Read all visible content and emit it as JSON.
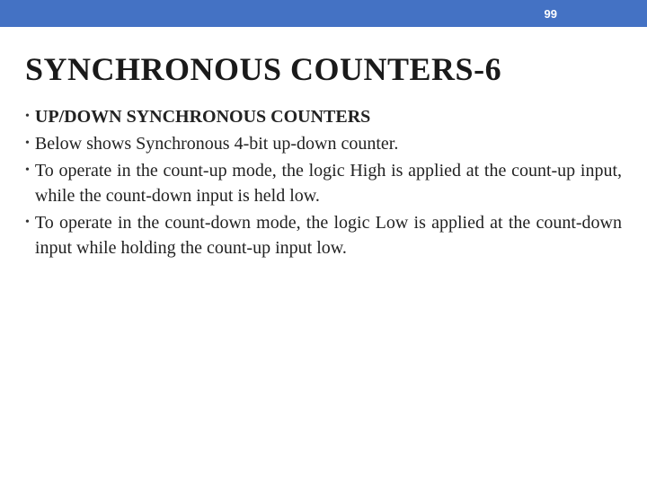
{
  "header": {
    "page_number": "99",
    "bar_color": "#4472c4",
    "text_color": "#ffffff"
  },
  "title": "SYNCHRONOUS COUNTERS-6",
  "bullets": [
    {
      "text": "UP/DOWN SYNCHRONOUS COUNTERS",
      "bold": true,
      "justify": false
    },
    {
      "text": "Below shows Synchronous 4-bit up-down counter.",
      "bold": false,
      "justify": false
    },
    {
      "text": "To operate in the count-up mode, the logic High is applied at the count-up input, while the count-down input is held low.",
      "bold": false,
      "justify": true
    },
    {
      "text": "To operate in the count-down mode, the logic Low is applied at the count-down input while holding the count-up input low.",
      "bold": false,
      "justify": true
    }
  ],
  "styling": {
    "background_color": "#ffffff",
    "title_fontsize": 36,
    "body_fontsize": 20,
    "font_family": "Georgia, serif"
  }
}
